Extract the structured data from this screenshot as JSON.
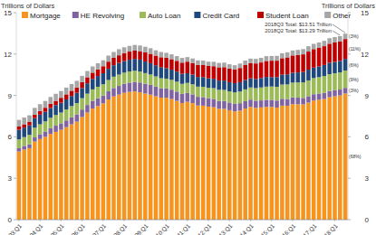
{
  "chart_data": {
    "type": "bar",
    "stacked": true,
    "grid": false,
    "legend": "top",
    "y_label": "Trillions of Dollars",
    "y2_label": "Trillions of Dollars",
    "ylim": [
      0,
      15
    ],
    "yticks": [
      0,
      3,
      6,
      9,
      12,
      15
    ],
    "y2lim": [
      0,
      15
    ],
    "y2ticks": [
      0,
      3,
      6,
      9,
      12,
      15
    ],
    "annotations": [
      "2018Q3 Total: $13.51 Trillion",
      "2018Q2 Total: $13.29 Trillion"
    ],
    "categories": [
      "03:Q1",
      null,
      null,
      null,
      "04:Q1",
      null,
      null,
      null,
      "05:Q1",
      null,
      null,
      null,
      "06:Q1",
      null,
      null,
      null,
      "07:Q1",
      null,
      null,
      null,
      "08:Q1",
      null,
      null,
      null,
      "09:Q1",
      null,
      null,
      null,
      "10:Q1",
      null,
      null,
      null,
      "11:Q1",
      null,
      null,
      null,
      "12:Q1",
      null,
      null,
      null,
      "13:Q1",
      null,
      null,
      null,
      "14:Q1",
      null,
      null,
      null,
      "15:Q1",
      null,
      null,
      null,
      "16:Q1",
      null,
      null,
      null,
      "17:Q1",
      null,
      null,
      null,
      "18:Q1",
      null,
      null
    ],
    "series": [
      {
        "name": "Mortgage",
        "color": "#f7941d",
        "share_label": "(68%)",
        "values": [
          4.94,
          5.08,
          5.18,
          5.66,
          5.84,
          6.0,
          6.21,
          6.36,
          6.51,
          6.7,
          6.91,
          7.1,
          7.44,
          7.76,
          8.05,
          8.23,
          8.42,
          8.71,
          8.93,
          9.06,
          9.19,
          9.26,
          9.29,
          9.23,
          9.14,
          9.06,
          8.94,
          8.84,
          8.83,
          8.74,
          8.61,
          8.45,
          8.54,
          8.44,
          8.27,
          8.26,
          8.19,
          8.15,
          8.03,
          8.03,
          7.93,
          7.84,
          7.9,
          8.05,
          8.17,
          8.1,
          8.13,
          8.17,
          8.17,
          8.12,
          8.26,
          8.25,
          8.37,
          8.36,
          8.35,
          8.48,
          8.63,
          8.69,
          8.74,
          8.88,
          8.94,
          9.0,
          9.14
        ]
      },
      {
        "name": "HE Revolving",
        "color": "#8064a2",
        "share_label": "(3%)",
        "values": [
          0.24,
          0.26,
          0.28,
          0.3,
          0.35,
          0.39,
          0.42,
          0.45,
          0.47,
          0.49,
          0.5,
          0.53,
          0.54,
          0.55,
          0.56,
          0.57,
          0.58,
          0.59,
          0.61,
          0.63,
          0.65,
          0.67,
          0.69,
          0.71,
          0.71,
          0.71,
          0.7,
          0.69,
          0.68,
          0.68,
          0.67,
          0.66,
          0.64,
          0.64,
          0.63,
          0.62,
          0.61,
          0.6,
          0.58,
          0.57,
          0.56,
          0.55,
          0.54,
          0.53,
          0.53,
          0.52,
          0.51,
          0.51,
          0.51,
          0.51,
          0.5,
          0.49,
          0.49,
          0.48,
          0.47,
          0.47,
          0.46,
          0.45,
          0.45,
          0.44,
          0.44,
          0.43,
          0.41
        ]
      },
      {
        "name": "Auto Loan",
        "color": "#9bbb59",
        "share_label": "(9%)",
        "values": [
          0.64,
          0.64,
          0.68,
          0.7,
          0.72,
          0.73,
          0.75,
          0.77,
          0.78,
          0.8,
          0.82,
          0.82,
          0.82,
          0.82,
          0.83,
          0.83,
          0.81,
          0.82,
          0.82,
          0.82,
          0.81,
          0.81,
          0.81,
          0.79,
          0.77,
          0.75,
          0.74,
          0.72,
          0.71,
          0.71,
          0.72,
          0.73,
          0.73,
          0.73,
          0.74,
          0.75,
          0.76,
          0.78,
          0.8,
          0.8,
          0.81,
          0.83,
          0.85,
          0.86,
          0.88,
          0.91,
          0.94,
          0.96,
          0.97,
          1.0,
          1.03,
          1.06,
          1.07,
          1.1,
          1.13,
          1.14,
          1.17,
          1.19,
          1.21,
          1.22,
          1.23,
          1.24,
          1.26
        ]
      },
      {
        "name": "Credit Card",
        "color": "#1f497d",
        "share_label": "(6%)",
        "values": [
          0.69,
          0.69,
          0.69,
          0.7,
          0.7,
          0.7,
          0.71,
          0.72,
          0.71,
          0.72,
          0.73,
          0.74,
          0.74,
          0.75,
          0.76,
          0.78,
          0.8,
          0.81,
          0.83,
          0.85,
          0.84,
          0.85,
          0.86,
          0.87,
          0.84,
          0.82,
          0.81,
          0.8,
          0.76,
          0.74,
          0.73,
          0.73,
          0.7,
          0.7,
          0.7,
          0.7,
          0.68,
          0.68,
          0.67,
          0.68,
          0.66,
          0.67,
          0.67,
          0.68,
          0.66,
          0.67,
          0.68,
          0.7,
          0.68,
          0.7,
          0.71,
          0.73,
          0.71,
          0.73,
          0.75,
          0.78,
          0.76,
          0.78,
          0.81,
          0.83,
          0.82,
          0.83,
          0.84
        ]
      },
      {
        "name": "Student Loan",
        "color": "#c00000",
        "share_label": "(11%)",
        "values": [
          0.24,
          0.24,
          0.25,
          0.25,
          0.26,
          0.29,
          0.3,
          0.31,
          0.36,
          0.37,
          0.38,
          0.39,
          0.43,
          0.44,
          0.45,
          0.47,
          0.51,
          0.52,
          0.54,
          0.55,
          0.58,
          0.59,
          0.6,
          0.61,
          0.66,
          0.68,
          0.7,
          0.72,
          0.76,
          0.76,
          0.78,
          0.81,
          0.84,
          0.84,
          0.87,
          0.87,
          0.9,
          0.91,
          0.96,
          0.97,
          0.99,
          0.99,
          1.03,
          1.08,
          1.11,
          1.12,
          1.13,
          1.16,
          1.19,
          1.19,
          1.2,
          1.23,
          1.26,
          1.26,
          1.28,
          1.31,
          1.34,
          1.34,
          1.36,
          1.38,
          1.41,
          1.41,
          1.44
        ]
      },
      {
        "name": "Other",
        "color": "#a6a6a6",
        "share_label": "(3%)",
        "values": [
          0.48,
          0.49,
          0.48,
          0.49,
          0.5,
          0.49,
          0.5,
          0.51,
          0.49,
          0.49,
          0.49,
          0.48,
          0.45,
          0.45,
          0.45,
          0.45,
          0.43,
          0.44,
          0.42,
          0.44,
          0.42,
          0.41,
          0.41,
          0.41,
          0.41,
          0.4,
          0.38,
          0.38,
          0.35,
          0.35,
          0.34,
          0.34,
          0.33,
          0.33,
          0.33,
          0.33,
          0.31,
          0.32,
          0.32,
          0.33,
          0.31,
          0.31,
          0.32,
          0.33,
          0.32,
          0.33,
          0.34,
          0.35,
          0.34,
          0.35,
          0.36,
          0.37,
          0.36,
          0.37,
          0.38,
          0.39,
          0.38,
          0.39,
          0.39,
          0.4,
          0.39,
          0.39,
          0.39
        ]
      }
    ]
  }
}
